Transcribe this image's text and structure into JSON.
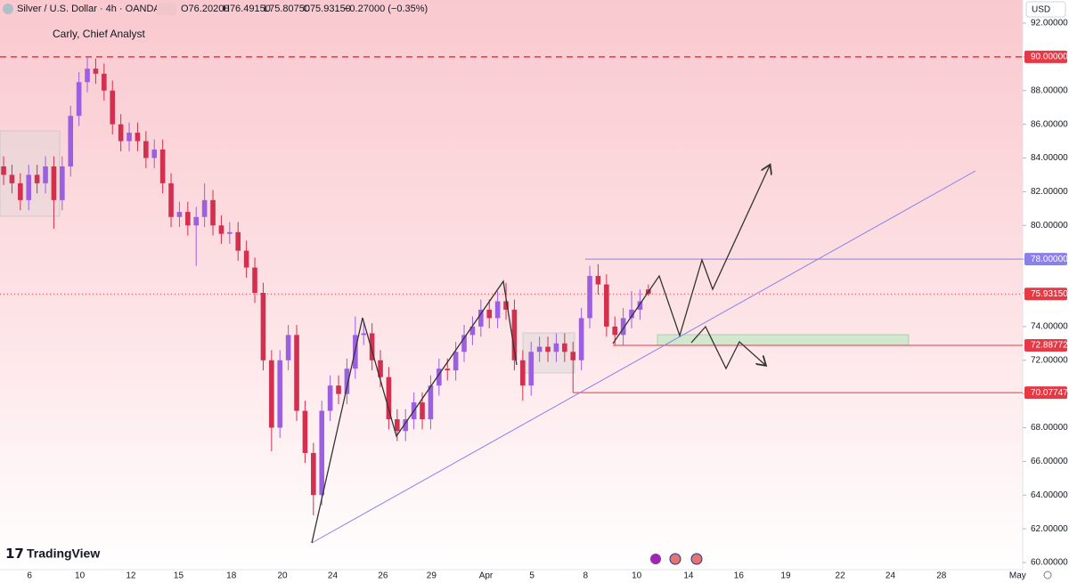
{
  "chart_data": {
    "type": "candlestick",
    "title": "Silver / U.S. Dollar · 4h · OANDA",
    "ohlc_header": {
      "open": "O76.20200",
      "high": "H76.49150",
      "low": "L75.80750",
      "close": "C75.93150",
      "change": "−0.27000 (−0.35%)"
    },
    "annotation": "Carly, Chief Analyst",
    "currency": "USD",
    "brand": "TradingView",
    "up_color": "#9c5fe0",
    "down_color": "#d32f4f",
    "ylim": [
      60,
      92
    ],
    "yticks": [
      {
        "value": 60,
        "label": "60.00000"
      },
      {
        "value": 62,
        "label": "62.00000"
      },
      {
        "value": 64,
        "label": "64.00000"
      },
      {
        "value": 66,
        "label": "66.00000"
      },
      {
        "value": 68,
        "label": "68.00000"
      },
      {
        "value": 70,
        "label": "70.00000"
      },
      {
        "value": 72,
        "label": "72.00000"
      },
      {
        "value": 74,
        "label": "74.00000"
      },
      {
        "value": 76,
        "label": "76.00000"
      },
      {
        "value": 78,
        "label": "78.00000"
      },
      {
        "value": 80,
        "label": "80.00000"
      },
      {
        "value": 82,
        "label": "82.00000"
      },
      {
        "value": 84,
        "label": "84.00000"
      },
      {
        "value": 86,
        "label": "86.00000"
      },
      {
        "value": 88,
        "label": "88.00000"
      },
      {
        "value": 90,
        "label": "90.00000"
      },
      {
        "value": 92,
        "label": "92.00000"
      }
    ],
    "xlim": [
      -0.43,
      121.7
    ],
    "xticks": [
      {
        "value": 3.1,
        "label": "6"
      },
      {
        "value": 9.1,
        "label": "10"
      },
      {
        "value": 15.2,
        "label": "12"
      },
      {
        "value": 20.9,
        "label": "15"
      },
      {
        "value": 27.2,
        "label": "18"
      },
      {
        "value": 33.3,
        "label": "20"
      },
      {
        "value": 39.3,
        "label": "24"
      },
      {
        "value": 45.3,
        "label": "26"
      },
      {
        "value": 51.1,
        "label": "29"
      },
      {
        "value": 57.6,
        "label": "Apr"
      },
      {
        "value": 63.1,
        "label": "5"
      },
      {
        "value": 69.5,
        "label": "8"
      },
      {
        "value": 75.6,
        "label": "10"
      },
      {
        "value": 81.8,
        "label": "14"
      },
      {
        "value": 87.8,
        "label": "16"
      },
      {
        "value": 93.4,
        "label": "19"
      },
      {
        "value": 99.9,
        "label": "22"
      },
      {
        "value": 105.9,
        "label": "24"
      },
      {
        "value": 112.0,
        "label": "28"
      },
      {
        "value": 121.1,
        "label": "May"
      }
    ],
    "levels": [
      {
        "value": 90,
        "label": "90.00000",
        "color": "#e53945",
        "style": "dashed"
      },
      {
        "value": 78,
        "label": "78.00000",
        "color": "#8b7fe8",
        "style": "solid"
      },
      {
        "value": 75.9315,
        "label": "75.93150",
        "color": "#e53945",
        "style": "dotted"
      },
      {
        "value": 72.88772,
        "label": "72.88772",
        "color": "#e53945",
        "style": "solid"
      },
      {
        "value": 70.07747,
        "label": "70.07747",
        "color": "#e53945",
        "style": "solid"
      }
    ],
    "candles": [
      [
        83.5,
        84.1,
        82.4,
        83
      ],
      [
        83,
        83.6,
        81.9,
        82.5
      ],
      [
        82.5,
        83.1,
        80.9,
        81.5
      ],
      [
        81.5,
        83.6,
        80.9,
        83
      ],
      [
        83,
        83.6,
        81.9,
        82.5
      ],
      [
        82.5,
        84.1,
        81.9,
        83.5
      ],
      [
        83.5,
        84.1,
        79.8,
        81.5
      ],
      [
        81.5,
        84.1,
        80.9,
        83.5
      ],
      [
        83.5,
        87.1,
        82.9,
        86.5
      ],
      [
        86.5,
        89.1,
        85.9,
        88.5
      ],
      [
        88.5,
        90,
        87.9,
        89.3
      ],
      [
        89.3,
        89.9,
        88.4,
        89
      ],
      [
        89,
        89.6,
        87.4,
        88
      ],
      [
        88,
        88.6,
        85.4,
        86
      ],
      [
        86,
        86.6,
        84.4,
        85
      ],
      [
        85,
        86.1,
        84.4,
        85.5
      ],
      [
        85.5,
        86.1,
        84.4,
        85
      ],
      [
        85,
        85.6,
        83.4,
        84
      ],
      [
        84,
        85.1,
        83.4,
        84.5
      ],
      [
        84.5,
        85.1,
        81.9,
        82.5
      ],
      [
        82.5,
        83.1,
        79.9,
        80.5
      ],
      [
        80.5,
        81.4,
        79.9,
        80.8
      ],
      [
        80.8,
        81.4,
        79.4,
        80
      ],
      [
        80,
        81.1,
        77.6,
        80.5
      ],
      [
        80.5,
        82.5,
        79.9,
        81.5
      ],
      [
        81.5,
        82.1,
        79.4,
        80
      ],
      [
        80,
        80.6,
        78.9,
        79.5
      ],
      [
        79.5,
        80.2,
        78.9,
        79.6
      ],
      [
        79.6,
        80.2,
        77.9,
        78.5
      ],
      [
        78.5,
        79.1,
        76.9,
        77.5
      ],
      [
        77.5,
        78.1,
        75.4,
        76
      ],
      [
        76,
        76.6,
        71.4,
        72
      ],
      [
        72,
        72.6,
        66.6,
        68
      ],
      [
        68,
        72.6,
        67.4,
        72
      ],
      [
        72,
        74.1,
        71.4,
        73.5
      ],
      [
        73.5,
        74.1,
        68.4,
        69
      ],
      [
        69,
        69.6,
        65.9,
        66.5
      ],
      [
        66.5,
        67.1,
        62.8,
        64
      ],
      [
        64,
        69.6,
        63.4,
        69
      ],
      [
        69,
        71.1,
        68.4,
        70.5
      ],
      [
        70.5,
        71.1,
        69.4,
        70
      ],
      [
        70,
        72.1,
        69.4,
        71.5
      ],
      [
        71.5,
        74.6,
        70.9,
        73.5
      ],
      [
        73.5,
        74.3,
        72.9,
        73.6
      ],
      [
        73.6,
        74.2,
        71.4,
        72
      ],
      [
        72,
        72.6,
        70.4,
        71
      ],
      [
        71,
        71.6,
        67.9,
        68.5
      ],
      [
        68.5,
        69.1,
        67.2,
        67.8
      ],
      [
        67.8,
        69.1,
        67.2,
        68.5
      ],
      [
        68.5,
        70.1,
        67.9,
        69.5
      ],
      [
        69.5,
        70.1,
        67.9,
        68.5
      ],
      [
        68.5,
        71.1,
        67.9,
        70.5
      ],
      [
        70.5,
        72.1,
        69.9,
        71.5
      ],
      [
        71.5,
        72.1,
        70.8,
        71.4
      ],
      [
        71.4,
        73.1,
        70.8,
        72.5
      ],
      [
        72.5,
        74.1,
        71.9,
        73.5
      ],
      [
        73.5,
        74.6,
        72.9,
        74
      ],
      [
        74,
        75.6,
        73.4,
        75
      ],
      [
        75,
        75.6,
        73.9,
        74.5
      ],
      [
        74.5,
        76.1,
        73.9,
        75.5
      ],
      [
        75.5,
        76.6,
        74.4,
        75
      ],
      [
        75,
        75.6,
        71.4,
        72
      ],
      [
        72,
        72.6,
        69.6,
        70.5
      ],
      [
        70.5,
        73.1,
        69.9,
        72.5
      ],
      [
        72.5,
        73.4,
        71.9,
        72.8
      ],
      [
        72.8,
        73.4,
        71.9,
        72.5
      ],
      [
        72.5,
        73.6,
        71.9,
        73
      ],
      [
        73,
        73.6,
        71.9,
        72.5
      ],
      [
        72.5,
        73.1,
        70.1,
        72
      ],
      [
        72,
        75.1,
        71.4,
        74.5
      ],
      [
        74.5,
        77.6,
        73.9,
        77
      ],
      [
        77,
        77.7,
        75.9,
        76.5
      ],
      [
        76.5,
        77.1,
        73.4,
        74
      ],
      [
        74,
        74.6,
        72.9,
        73.5
      ],
      [
        73.5,
        75.1,
        72.9,
        74.5
      ],
      [
        74.5,
        76.1,
        73.9,
        75
      ],
      [
        75,
        76.2,
        74.4,
        75.5
      ],
      [
        76.202,
        76.4915,
        75.8075,
        75.9315
      ]
    ]
  }
}
